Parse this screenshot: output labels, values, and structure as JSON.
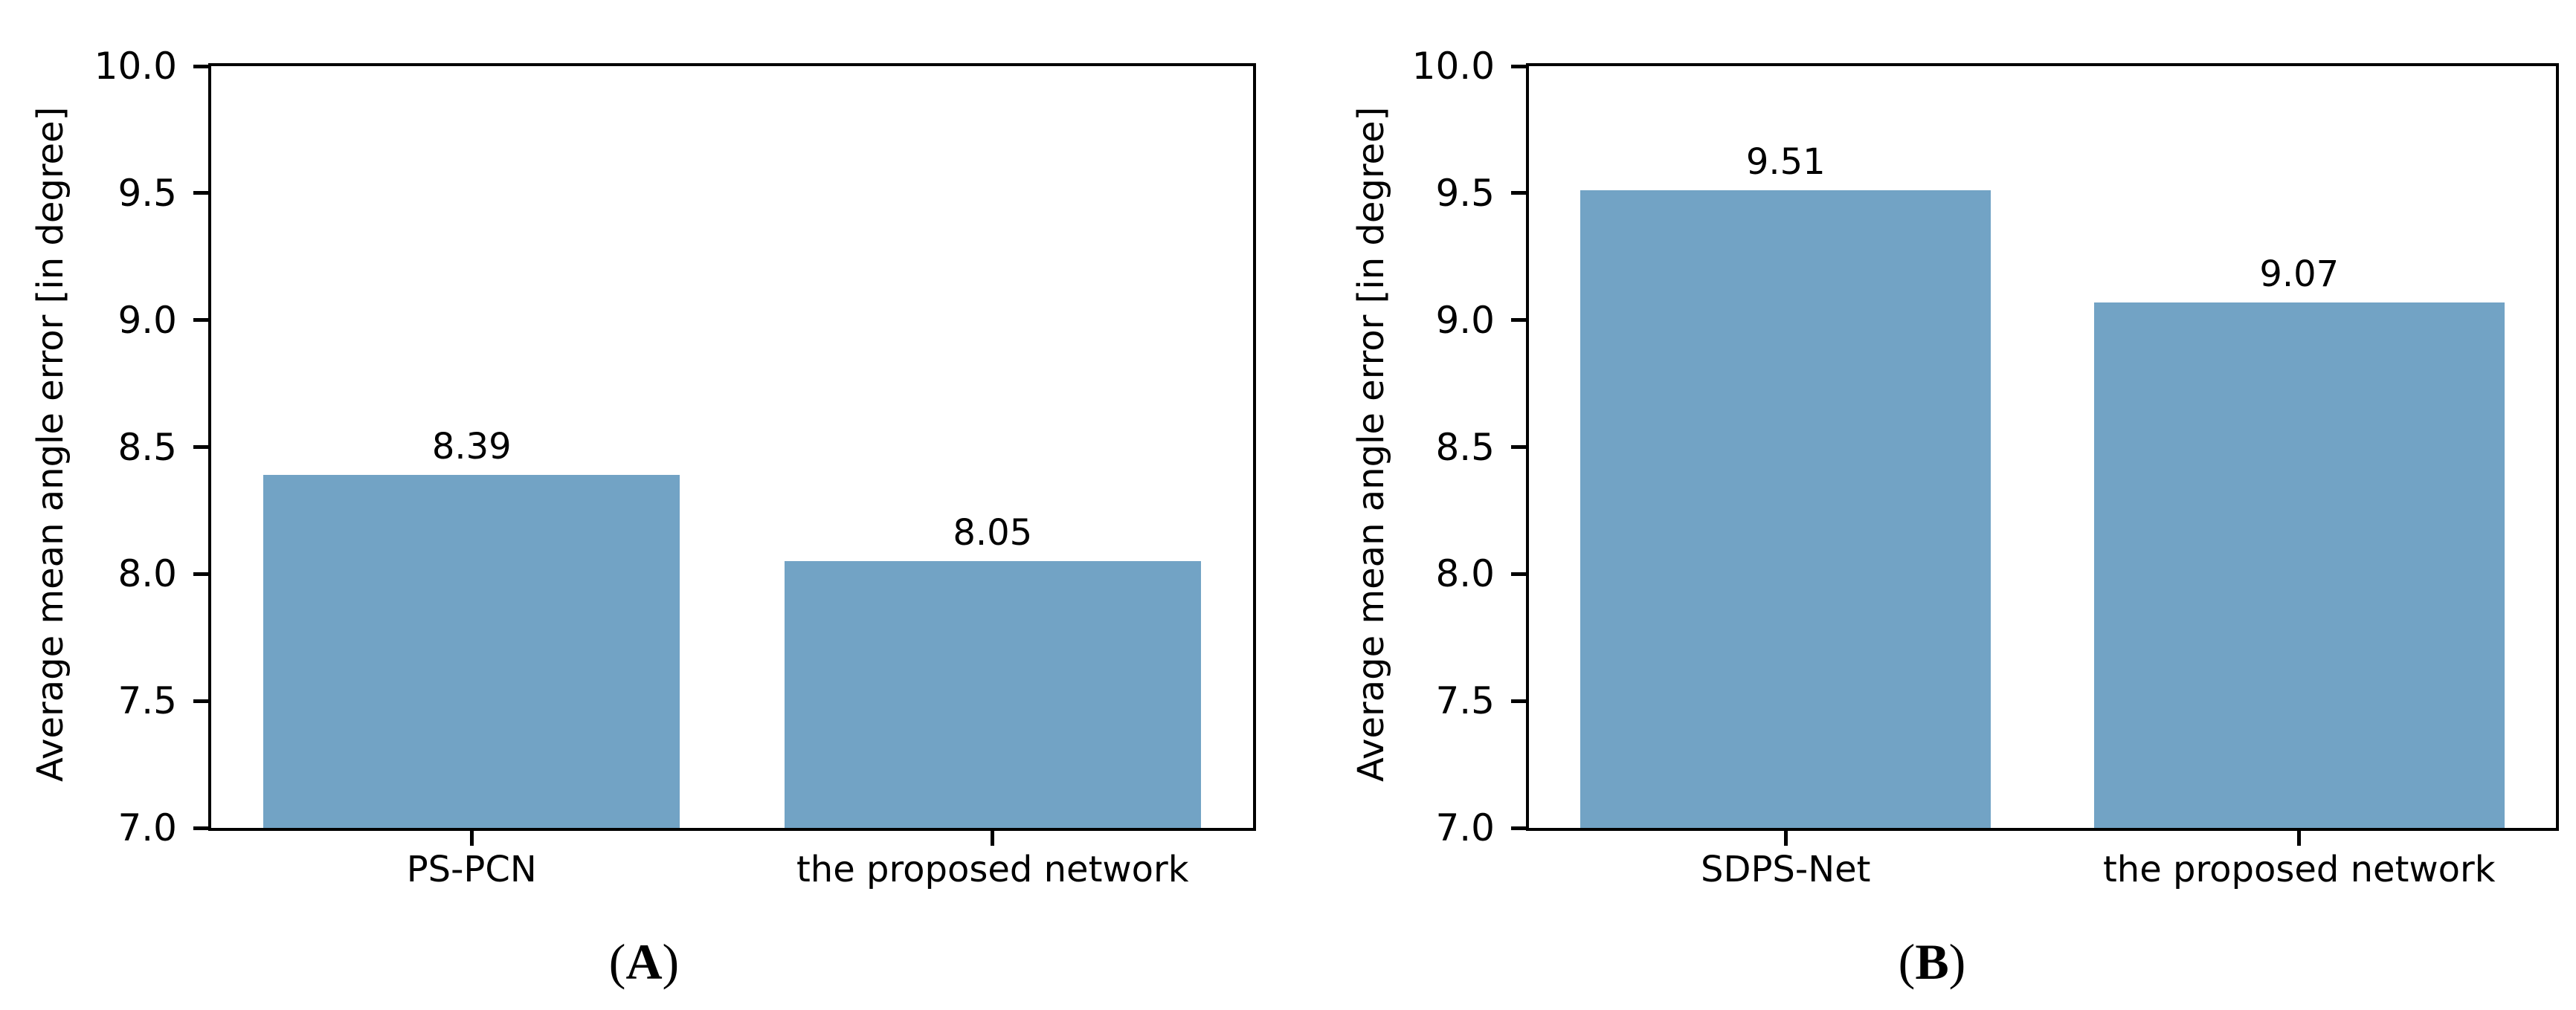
{
  "figure": {
    "panels": [
      {
        "caption_open": "(",
        "letter": "A",
        "caption_close": ")"
      },
      {
        "caption_open": "(",
        "letter": "B",
        "caption_close": ")"
      }
    ]
  },
  "chart_data": [
    {
      "type": "bar",
      "title": "",
      "categories": [
        "PS-PCN",
        "the proposed network"
      ],
      "values": [
        8.39,
        8.05
      ],
      "value_labels": [
        "8.39",
        "8.05"
      ],
      "xlabel": "",
      "ylabel": "Average mean angle error [in degree]",
      "ylim": [
        7.0,
        10.0
      ],
      "ytick_step": 0.5,
      "yticks": [
        "7.0",
        "7.5",
        "8.0",
        "8.5",
        "9.0",
        "9.5",
        "10.0"
      ],
      "grid": false,
      "legend": null,
      "bar_color": "#72a3c5",
      "spine_color": "#000000",
      "panel_label": "(A)"
    },
    {
      "type": "bar",
      "title": "",
      "categories": [
        "SDPS-Net",
        "the proposed network"
      ],
      "values": [
        9.51,
        9.07
      ],
      "value_labels": [
        "9.51",
        "9.07"
      ],
      "xlabel": "",
      "ylabel": "Average mean angle error [in degree]",
      "ylim": [
        7.0,
        10.0
      ],
      "ytick_step": 0.5,
      "yticks": [
        "7.0",
        "7.5",
        "8.0",
        "8.5",
        "9.0",
        "9.5",
        "10.0"
      ],
      "grid": false,
      "legend": null,
      "bar_color": "#72a3c5",
      "spine_color": "#000000",
      "panel_label": "(B)"
    }
  ]
}
